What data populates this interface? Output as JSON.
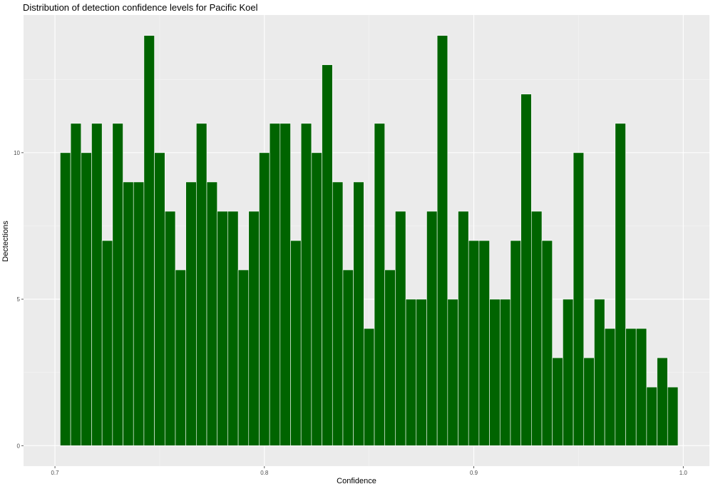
{
  "chart_data": {
    "type": "bar",
    "title": "Distribution of detection confidence levels for Pacific Koel",
    "xlabel": "Confidence",
    "ylabel": "Dectections",
    "xlim": [
      0.685,
      1.0125
    ],
    "ylim": [
      -0.7,
      14.7
    ],
    "x_ticks": [
      0.7,
      0.8,
      0.9,
      1.0
    ],
    "x_tick_labels": [
      "0.7",
      "0.8",
      "0.9",
      "1.0"
    ],
    "y_ticks": [
      0,
      5,
      10
    ],
    "y_tick_labels": [
      "0",
      "5",
      "10"
    ],
    "bin_start": 0.7025,
    "bin_width": 0.005,
    "values": [
      10,
      11,
      10,
      11,
      7,
      11,
      9,
      9,
      14,
      10,
      8,
      6,
      9,
      11,
      9,
      8,
      8,
      6,
      8,
      10,
      11,
      11,
      7,
      11,
      10,
      13,
      9,
      6,
      9,
      4,
      11,
      6,
      8,
      5,
      5,
      8,
      14,
      5,
      8,
      7,
      7,
      5,
      5,
      7,
      12,
      8,
      7,
      3,
      5,
      10,
      3,
      5,
      4,
      11,
      4,
      4,
      2,
      3,
      2
    ],
    "bar_color": "#006400",
    "panel_background": "#ebebeb",
    "grid": true
  }
}
